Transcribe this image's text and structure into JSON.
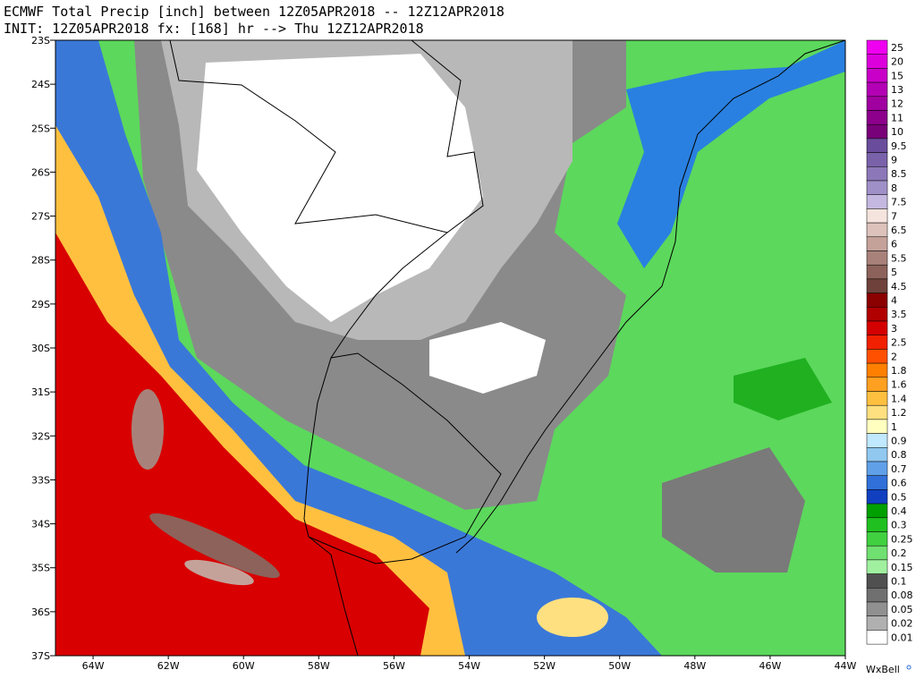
{
  "header": {
    "line1": "ECMWF Total Precip [inch] between 12Z05APR2018 -- 12Z12APR2018",
    "line2": "INIT: 12Z05APR2018 fx: [168] hr --> Thu 12Z12APR2018"
  },
  "lat_labels": [
    "23S",
    "24S",
    "25S",
    "26S",
    "27S",
    "28S",
    "29S",
    "30S",
    "31S",
    "32S",
    "33S",
    "34S",
    "35S",
    "36S",
    "37S"
  ],
  "lon_labels": [
    "64W",
    "62W",
    "60W",
    "58W",
    "56W",
    "54W",
    "52W",
    "50W",
    "48W",
    "46W",
    "44W"
  ],
  "legend": [
    {
      "label": "25",
      "color": "#f000f0"
    },
    {
      "label": "20",
      "color": "#dc00dc"
    },
    {
      "label": "15",
      "color": "#c800c8"
    },
    {
      "label": "13",
      "color": "#b400b4"
    },
    {
      "label": "12",
      "color": "#a000a0"
    },
    {
      "label": "11",
      "color": "#8c008c"
    },
    {
      "label": "10",
      "color": "#780078"
    },
    {
      "label": "9.5",
      "color": "#6a4c9c"
    },
    {
      "label": "9",
      "color": "#7a62aa"
    },
    {
      "label": "8.5",
      "color": "#8c78b8"
    },
    {
      "label": "8",
      "color": "#a090c8"
    },
    {
      "label": "7.5",
      "color": "#c4b8e0"
    },
    {
      "label": "7",
      "color": "#f5e4de"
    },
    {
      "label": "6.5",
      "color": "#dcc2ba"
    },
    {
      "label": "6",
      "color": "#c4a29a"
    },
    {
      "label": "5.5",
      "color": "#a8827a"
    },
    {
      "label": "5",
      "color": "#8c625a"
    },
    {
      "label": "4.5",
      "color": "#6e423a"
    },
    {
      "label": "4",
      "color": "#8b0000"
    },
    {
      "label": "3.5",
      "color": "#b00000"
    },
    {
      "label": "3",
      "color": "#d40000"
    },
    {
      "label": "2.5",
      "color": "#f02000"
    },
    {
      "label": "2",
      "color": "#ff5000"
    },
    {
      "label": "1.8",
      "color": "#ff8000"
    },
    {
      "label": "1.6",
      "color": "#ffa020"
    },
    {
      "label": "1.4",
      "color": "#ffc040"
    },
    {
      "label": "1.2",
      "color": "#ffe080"
    },
    {
      "label": "1",
      "color": "#ffffc0"
    },
    {
      "label": "0.9",
      "color": "#c0e8ff"
    },
    {
      "label": "0.8",
      "color": "#90c8f0"
    },
    {
      "label": "0.7",
      "color": "#60a0e8"
    },
    {
      "label": "0.6",
      "color": "#3070d8"
    },
    {
      "label": "0.5",
      "color": "#1040c0"
    },
    {
      "label": "0.4",
      "color": "#00a000"
    },
    {
      "label": "0.3",
      "color": "#20c020"
    },
    {
      "label": "0.25",
      "color": "#40d040"
    },
    {
      "label": "0.2",
      "color": "#70e070"
    },
    {
      "label": "0.15",
      "color": "#a0f0a0"
    },
    {
      "label": "0.1",
      "color": "#505050"
    },
    {
      "label": "0.08",
      "color": "#707070"
    },
    {
      "label": "0.05",
      "color": "#909090"
    },
    {
      "label": "0.02",
      "color": "#b0b0b0"
    },
    {
      "label": "0.01",
      "color": "#ffffff"
    }
  ],
  "brand": "WxBell"
}
